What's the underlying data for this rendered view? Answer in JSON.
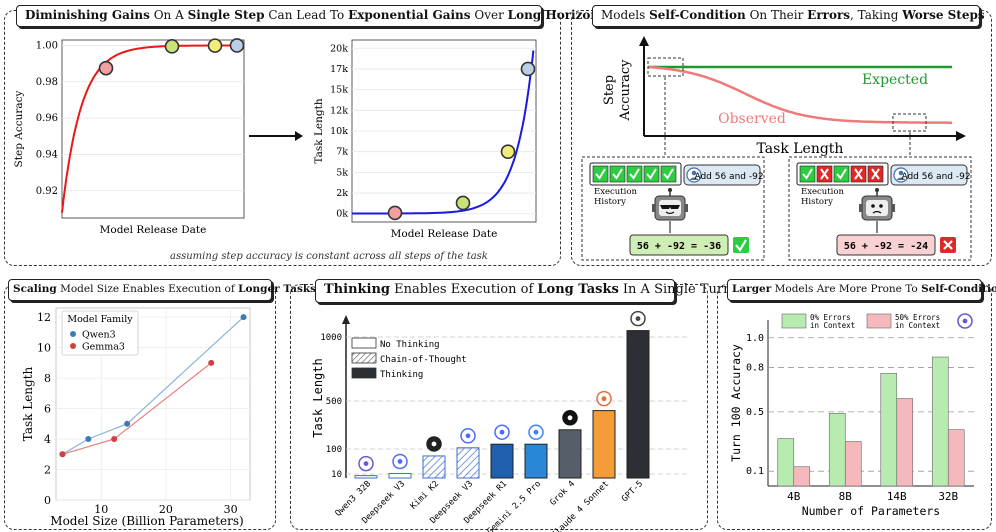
{
  "panel1": {
    "title_parts": [
      {
        "t": "Diminishing Gains",
        "b": true
      },
      {
        "t": " On A ",
        "b": false
      },
      {
        "t": "Single Step",
        "b": true
      },
      {
        "t": " Can Lead To ",
        "b": false
      },
      {
        "t": "Exponential Gains",
        "b": true
      },
      {
        "t": " Over ",
        "b": false
      },
      {
        "t": "Long Horizon",
        "b": true
      }
    ],
    "note": "assuming step accuracy is constant across all steps of the task"
  },
  "panel2": {
    "title_parts": [
      {
        "t": "Models ",
        "b": false
      },
      {
        "t": "Self-Condition",
        "b": true
      },
      {
        "t": " On Their ",
        "b": false
      },
      {
        "t": "Errors",
        "b": true
      },
      {
        "t": ", Taking ",
        "b": false
      },
      {
        "t": "Worse Steps",
        "b": true
      }
    ],
    "ylabel_line1": "Step",
    "ylabel_line2": "Accuracy",
    "xlabel": "Task Length",
    "expected_label": "Expected",
    "observed_label": "Observed",
    "left_example": {
      "history_label_1": "Execution",
      "history_label_2": "History",
      "query": "Add 56 and -92",
      "answer": "56 + -92 = -36",
      "result": "correct",
      "history": [
        "check",
        "check",
        "check",
        "check",
        "check"
      ]
    },
    "right_example": {
      "history_label_1": "Execution",
      "history_label_2": "History",
      "query": "Add 56 and -92",
      "answer": "56 + -92 = -24",
      "result": "wrong",
      "history": [
        "check",
        "cross",
        "check",
        "cross",
        "cross"
      ]
    },
    "colors": {
      "expected": "#1e9a2a",
      "observed": "#f07a7a",
      "correct": "#2ecc40",
      "wrong": "#e02828"
    }
  },
  "panel3": {
    "title_parts": [
      {
        "t": "Scaling",
        "b": true
      },
      {
        "t": " Model Size Enables Execution of ",
        "b": false
      },
      {
        "t": "Longer Tasks",
        "b": true
      }
    ]
  },
  "panel4": {
    "title_parts": [
      {
        "t": "Thinking",
        "b": true
      },
      {
        "t": " Enables Execution of ",
        "b": false
      },
      {
        "t": "Long Tasks",
        "b": true
      },
      {
        "t": " In A Single Turn",
        "b": false
      }
    ]
  },
  "panel5": {
    "title_parts": [
      {
        "t": "Larger",
        "b": true
      },
      {
        "t": " Models Are More Prone To ",
        "b": false
      },
      {
        "t": "Self-Conditioning",
        "b": true
      }
    ]
  },
  "chart_data": [
    {
      "id": "step-accuracy",
      "type": "line",
      "xlabel": "Model Release Date",
      "ylabel": "Step Accuracy",
      "ylim": [
        0.905,
        1.003
      ],
      "yticks": [
        0.92,
        0.94,
        0.96,
        0.98,
        1.0
      ],
      "ytick_labels": [
        "0.92",
        "0.94",
        "0.96",
        "0.98",
        "1.00"
      ],
      "marker_values": [
        0.9875,
        0.9995,
        0.9999,
        1.0
      ],
      "marker_colors": [
        "#f4a0a0",
        "#c9e27a",
        "#f2ec7a",
        "#b9cfe6"
      ]
    },
    {
      "id": "task-length",
      "type": "line",
      "xlabel": "Model Release Date",
      "ylabel": "Task Length",
      "ylim": [
        -1000,
        21000
      ],
      "yticks": [
        0,
        2500,
        5000,
        7500,
        10000,
        12500,
        15000,
        17500,
        20000
      ],
      "ytick_labels": [
        "0k",
        "2k",
        "5k",
        "7k",
        "10k",
        "12k",
        "15k",
        "17k",
        "20k"
      ],
      "marker_values": [
        100,
        1300,
        7500,
        17500
      ],
      "marker_colors": [
        "#f4a0a0",
        "#c9e27a",
        "#f2ec7a",
        "#b9cfe6"
      ]
    },
    {
      "id": "scaling",
      "type": "line",
      "xlabel": "Model Size (Billion Parameters)",
      "ylabel": "Task Length",
      "xlim": [
        3,
        33
      ],
      "ylim": [
        0,
        12.6
      ],
      "xticks": [
        10,
        20,
        30
      ],
      "yticks": [
        0,
        2,
        4,
        6,
        8,
        10,
        12
      ],
      "legend_title": "Model Family",
      "series": [
        {
          "name": "Qwen3",
          "color": "#3d7ab8",
          "line": "#8ab4de",
          "x": [
            4,
            8,
            14,
            32
          ],
          "y": [
            3,
            4,
            5,
            12
          ]
        },
        {
          "name": "Gemma3",
          "color": "#d04040",
          "line": "#e88080",
          "x": [
            4,
            12,
            27
          ],
          "y": [
            3,
            4,
            9
          ]
        }
      ]
    },
    {
      "id": "thinking",
      "type": "bar",
      "ylabel": "Task Length",
      "yticks": [
        10,
        100,
        500,
        1000
      ],
      "ymax": 1100,
      "legend": [
        {
          "label": "No Thinking",
          "style": "plain"
        },
        {
          "label": "Chain-of-Thought",
          "style": "hatch"
        },
        {
          "label": "Thinking",
          "style": "dark"
        }
      ],
      "categories": [
        "Qwen3 32B",
        "Deepseek V3",
        "Kimi K2",
        "Deepseek V3",
        "Deepseek R1",
        "Gemini 2.5 Pro",
        "Grok 4",
        "Claude 4 Sonnet",
        "GPT-5"
      ],
      "values": [
        6,
        12,
        75,
        110,
        140,
        140,
        260,
        420,
        1050
      ],
      "styles": [
        "plain",
        "plain",
        "hatch",
        "hatch",
        "solid",
        "solid",
        "solid",
        "solid",
        "solid"
      ],
      "colors": [
        "#ffffff",
        "#ffffff",
        "#ffffff",
        "#ffffff",
        "#1e5fae",
        "#2a86d6",
        "#555e69",
        "#f39c38",
        "#2c2f33"
      ],
      "icon_colors": [
        "#6a5acd",
        "#4d6bfe",
        "#222222",
        "#4d6bfe",
        "#4d6bfe",
        "#3b82f6",
        "#111111",
        "#e07040",
        "#444444"
      ]
    },
    {
      "id": "self-conditioning",
      "type": "bar",
      "xlabel": "Number of Parameters",
      "ylabel": "Turn 100 Accuracy",
      "categories": [
        "4B",
        "8B",
        "14B",
        "32B"
      ],
      "yticks": [
        0.1,
        0.5,
        0.8,
        1.0
      ],
      "ytick_labels": [
        "0.1",
        "0.5",
        "0.8",
        "1.0"
      ],
      "series": [
        {
          "name": "0% Errors in Context",
          "label_line1": "0% Errors",
          "label_line2": "in Context",
          "color": "#b7ebb0",
          "values": [
            0.32,
            0.49,
            0.76,
            0.87
          ]
        },
        {
          "name": "50% Errors in Context",
          "label_line1": "50% Errors",
          "label_line2": "in Context",
          "color": "#f5b8bc",
          "values": [
            0.13,
            0.3,
            0.59,
            0.38
          ]
        }
      ]
    }
  ]
}
